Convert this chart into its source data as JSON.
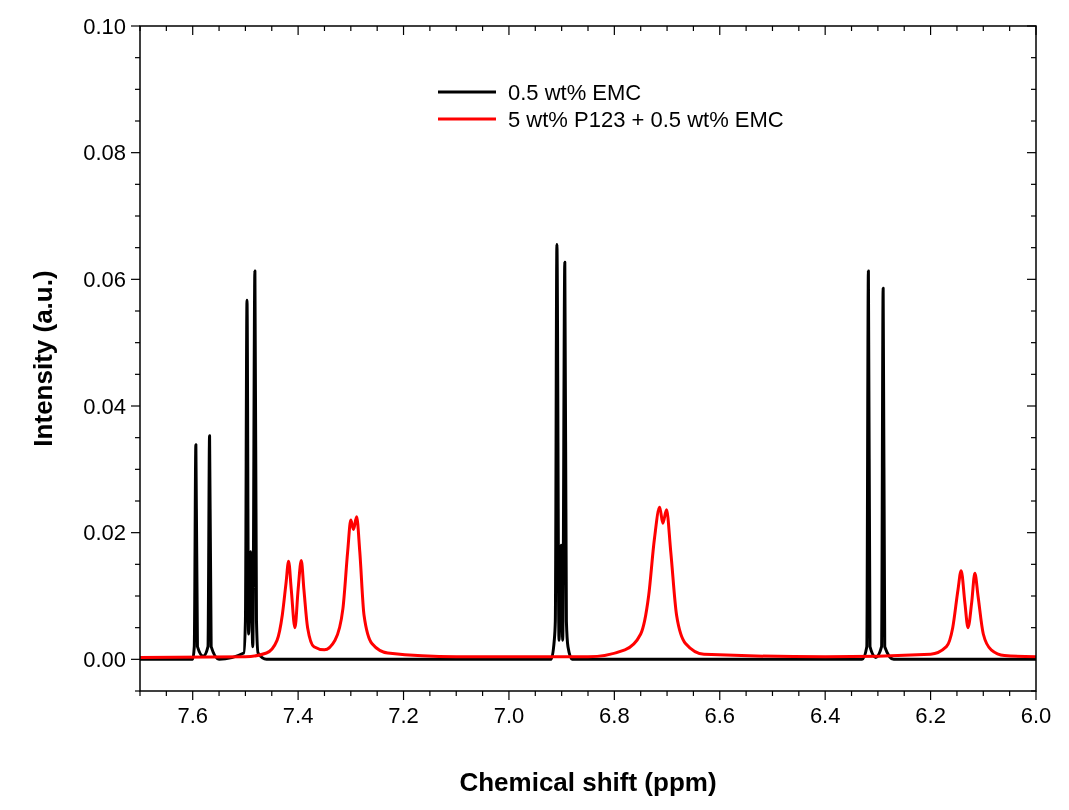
{
  "chart_data": {
    "type": "line",
    "xlabel": "Chemical shift (ppm)",
    "ylabel": "Intensity (a.u.)",
    "xlim": [
      7.7,
      6.0
    ],
    "ylim": [
      -0.005,
      0.1
    ],
    "xticks": [
      {
        "value": 7.7,
        "label": null
      },
      {
        "value": 7.65,
        "label": null
      },
      7.6,
      {
        "value": 7.55,
        "label": null
      },
      7.4,
      {
        "value": 7.5,
        "label": null
      },
      {
        "value": 7.45,
        "label": null
      },
      {
        "value": 7.35,
        "label": null
      },
      {
        "value": 7.3,
        "label": null
      },
      {
        "value": 7.25,
        "label": null
      },
      7.2,
      {
        "value": 7.15,
        "label": null
      },
      {
        "value": 7.1,
        "label": null
      },
      {
        "value": 7.05,
        "label": null
      },
      {
        "value": 7.0,
        "label": "7.0"
      },
      {
        "value": 6.95,
        "label": null
      },
      {
        "value": 6.9,
        "label": null
      },
      {
        "value": 6.85,
        "label": null
      },
      6.8,
      {
        "value": 6.75,
        "label": null
      },
      {
        "value": 6.7,
        "label": null
      },
      {
        "value": 6.65,
        "label": null
      },
      6.6,
      {
        "value": 6.55,
        "label": null
      },
      {
        "value": 6.5,
        "label": null
      },
      {
        "value": 6.45,
        "label": null
      },
      6.4,
      {
        "value": 6.35,
        "label": null
      },
      {
        "value": 6.3,
        "label": null
      },
      {
        "value": 6.25,
        "label": null
      },
      6.2,
      {
        "value": 6.15,
        "label": null
      },
      {
        "value": 6.1,
        "label": null
      },
      {
        "value": 6.05,
        "label": null
      },
      {
        "value": 6.0,
        "label": "6.0"
      }
    ],
    "yticks": [
      {
        "value": -0.005,
        "label": null
      },
      {
        "value": 0,
        "label": "0.00"
      },
      {
        "value": 0.005,
        "label": null
      },
      {
        "value": 0.01,
        "label": null
      },
      {
        "value": 0.015,
        "label": null
      },
      {
        "value": 0.02,
        "label": "0.02"
      },
      {
        "value": 0.025,
        "label": null
      },
      {
        "value": 0.03,
        "label": null
      },
      {
        "value": 0.035,
        "label": null
      },
      {
        "value": 0.04,
        "label": "0.04"
      },
      {
        "value": 0.045,
        "label": null
      },
      {
        "value": 0.05,
        "label": null
      },
      {
        "value": 0.055,
        "label": null
      },
      {
        "value": 0.06,
        "label": "0.06"
      },
      {
        "value": 0.065,
        "label": null
      },
      {
        "value": 0.07,
        "label": null
      },
      {
        "value": 0.075,
        "label": null
      },
      {
        "value": 0.08,
        "label": "0.08"
      },
      {
        "value": 0.085,
        "label": null
      },
      {
        "value": 0.09,
        "label": null
      },
      {
        "value": 0.095,
        "label": null
      },
      {
        "value": 0.1,
        "label": "0.10"
      }
    ],
    "legend": "top",
    "grid": false,
    "line_style": "solid",
    "series": [
      {
        "name": "0.5 wt% EMC",
        "color": "#000000",
        "x": [
          7.7,
          7.6,
          7.597,
          7.594,
          7.591,
          7.58,
          7.571,
          7.568,
          7.565,
          7.55,
          7.503,
          7.5,
          7.497,
          7.494,
          7.49,
          7.486,
          7.482,
          7.479,
          7.476,
          7.46,
          6.92,
          6.914,
          6.912,
          6.909,
          6.905,
          6.901,
          6.898,
          6.894,
          6.891,
          6.888,
          6.88,
          6.33,
          6.321,
          6.318,
          6.315,
          6.304,
          6.293,
          6.29,
          6.287,
          6.27,
          6.0
        ],
        "values": [
          0,
          0,
          0.002,
          0.0339,
          0.002,
          0.0005,
          0.002,
          0.0353,
          0.002,
          0,
          0.001,
          0.006,
          0.0567,
          0.004,
          0.017,
          0.002,
          0.0613,
          0.006,
          0.001,
          0,
          0,
          0.003,
          0.006,
          0.0655,
          0.003,
          0.018,
          0.003,
          0.0627,
          0.006,
          0.002,
          0,
          0,
          0.002,
          0.0613,
          0.002,
          0.0003,
          0.002,
          0.0586,
          0.002,
          0,
          0
        ]
      },
      {
        "name": "5 wt% P123 + 0.5 wt% EMC",
        "color": "#ff0000",
        "x": [
          7.7,
          7.5,
          7.46,
          7.44,
          7.43,
          7.423,
          7.418,
          7.413,
          7.406,
          7.4,
          7.394,
          7.389,
          7.382,
          7.37,
          7.35,
          7.33,
          7.315,
          7.306,
          7.3,
          7.295,
          7.289,
          7.283,
          7.275,
          7.26,
          7.23,
          7.1,
          6.85,
          6.78,
          6.75,
          6.735,
          6.724,
          6.714,
          6.708,
          6.701,
          6.693,
          6.682,
          6.665,
          6.63,
          6.4,
          6.2,
          6.17,
          6.158,
          6.148,
          6.142,
          6.135,
          6.129,
          6.122,
          6.116,
          6.11,
          6.1,
          6.085,
          6.06,
          6.0
        ],
        "values": [
          0.0003,
          0.0004,
          0.001,
          0.003,
          0.007,
          0.012,
          0.0155,
          0.011,
          0.005,
          0.011,
          0.0156,
          0.011,
          0.005,
          0.002,
          0.0015,
          0.003,
          0.008,
          0.017,
          0.022,
          0.0205,
          0.0225,
          0.017,
          0.007,
          0.0025,
          0.001,
          0.0004,
          0.0004,
          0.0015,
          0.004,
          0.01,
          0.019,
          0.024,
          0.0215,
          0.0236,
          0.017,
          0.007,
          0.0025,
          0.0008,
          0.0004,
          0.0008,
          0.002,
          0.005,
          0.011,
          0.014,
          0.009,
          0.005,
          0.009,
          0.0136,
          0.01,
          0.004,
          0.0015,
          0.0006,
          0.0004
        ]
      }
    ]
  }
}
